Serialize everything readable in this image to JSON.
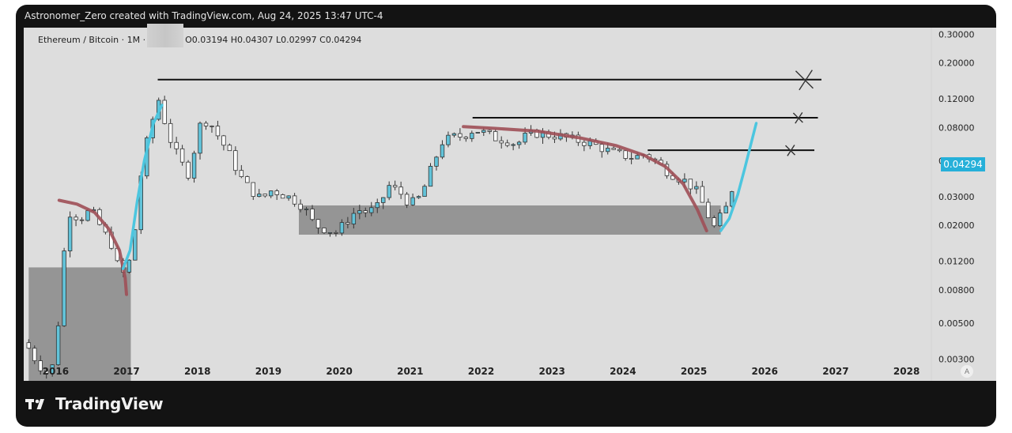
{
  "header": {
    "attribution": "Astronomer_Zero created with TradingView.com, Aug 24, 2025 13:47 UTC-4"
  },
  "legend": {
    "symbol": "Ethereum / Bitcoin · 1M ·",
    "ohlc": "O0.03194  H0.04307  L0.02997  C0.04294"
  },
  "brand": {
    "name": "TradingView"
  },
  "auto_button": "A",
  "colors": {
    "bullish_candle": "#62c3d9",
    "bearish_candle": "#ffffff",
    "candle_outline": "#333333",
    "arc_red": "#9e4f57",
    "arc_blue": "#4cc6df",
    "zone": "#888888",
    "price_label": "#26b0d9"
  },
  "chart_data": {
    "type": "candlestick",
    "symbol": "ETHBTC",
    "interval": "1M",
    "scale": "log",
    "ylim": [
      0.0022,
      0.33
    ],
    "xlim": [
      2015.55,
      2028.35
    ],
    "y_ticks": [
      "0.30000",
      "0.20000",
      "0.12000",
      "0.08000",
      "0.05000",
      "0.03000",
      "0.02000",
      "0.01200",
      "0.00800",
      "0.00500",
      "0.00300"
    ],
    "x_ticks": [
      "2016",
      "2017",
      "2018",
      "2019",
      "2020",
      "2021",
      "2022",
      "2023",
      "2024",
      "2025",
      "2026",
      "2027",
      "2028"
    ],
    "last_price": "0.04294",
    "close_path": [
      [
        2015.62,
        0.0035
      ],
      [
        2015.75,
        0.0028
      ],
      [
        2015.9,
        0.0024
      ],
      [
        2016.0,
        0.003
      ],
      [
        2016.1,
        0.012
      ],
      [
        2016.2,
        0.024
      ],
      [
        2016.35,
        0.022
      ],
      [
        2016.5,
        0.025
      ],
      [
        2016.65,
        0.019
      ],
      [
        2016.8,
        0.015
      ],
      [
        2016.92,
        0.0095
      ],
      [
        2017.08,
        0.013
      ],
      [
        2017.2,
        0.04
      ],
      [
        2017.3,
        0.07
      ],
      [
        2017.45,
        0.12
      ],
      [
        2017.6,
        0.07
      ],
      [
        2017.75,
        0.05
      ],
      [
        2017.9,
        0.04
      ],
      [
        2018.0,
        0.08
      ],
      [
        2018.15,
        0.09
      ],
      [
        2018.3,
        0.07
      ],
      [
        2018.45,
        0.055
      ],
      [
        2018.6,
        0.04
      ],
      [
        2018.75,
        0.033
      ],
      [
        2018.9,
        0.029
      ],
      [
        2019.05,
        0.033
      ],
      [
        2019.2,
        0.031
      ],
      [
        2019.35,
        0.029
      ],
      [
        2019.5,
        0.026
      ],
      [
        2019.65,
        0.02
      ],
      [
        2019.8,
        0.019
      ],
      [
        2019.95,
        0.018
      ],
      [
        2020.1,
        0.021
      ],
      [
        2020.25,
        0.025
      ],
      [
        2020.4,
        0.024
      ],
      [
        2020.55,
        0.026
      ],
      [
        2020.7,
        0.035
      ],
      [
        2020.85,
        0.032
      ],
      [
        2021.0,
        0.027
      ],
      [
        2021.15,
        0.03
      ],
      [
        2021.3,
        0.045
      ],
      [
        2021.45,
        0.065
      ],
      [
        2021.6,
        0.07
      ],
      [
        2021.75,
        0.071
      ],
      [
        2021.9,
        0.078
      ],
      [
        2022.05,
        0.074
      ],
      [
        2022.2,
        0.069
      ],
      [
        2022.35,
        0.067
      ],
      [
        2022.5,
        0.063
      ],
      [
        2022.65,
        0.072
      ],
      [
        2022.8,
        0.074
      ],
      [
        2022.95,
        0.072
      ],
      [
        2023.1,
        0.071
      ],
      [
        2023.25,
        0.068
      ],
      [
        2023.4,
        0.066
      ],
      [
        2023.55,
        0.064
      ],
      [
        2023.7,
        0.06
      ],
      [
        2023.85,
        0.056
      ],
      [
        2024.0,
        0.054
      ],
      [
        2024.15,
        0.052
      ],
      [
        2024.3,
        0.055
      ],
      [
        2024.45,
        0.05
      ],
      [
        2024.6,
        0.044
      ],
      [
        2024.75,
        0.04
      ],
      [
        2024.9,
        0.037
      ],
      [
        2025.05,
        0.032
      ],
      [
        2025.2,
        0.023
      ],
      [
        2025.3,
        0.019
      ],
      [
        2025.4,
        0.024
      ],
      [
        2025.5,
        0.027
      ],
      [
        2025.58,
        0.043
      ]
    ],
    "zones": [
      {
        "x": [
          2015.62,
          2017.06
        ],
        "y": [
          0.0021,
          0.011
        ]
      },
      {
        "x": [
          2019.43,
          2025.38
        ],
        "y": [
          0.0175,
          0.0265
        ]
      }
    ],
    "resistance_lines": [
      {
        "x": [
          2017.44,
          2026.8
        ],
        "y": 0.158
      },
      {
        "x": [
          2021.88,
          2026.75
        ],
        "y": 0.092
      },
      {
        "x": [
          2024.35,
          2026.7
        ],
        "y": 0.058
      }
    ],
    "cross_marks": [
      {
        "x": 2026.56,
        "y": 0.158,
        "size": "large"
      },
      {
        "x": 2026.47,
        "y": 0.092,
        "size": "small"
      },
      {
        "x": 2026.36,
        "y": 0.058,
        "size": "small"
      }
    ],
    "red_arcs": [
      [
        [
          2016.05,
          0.0285
        ],
        [
          2016.3,
          0.027
        ],
        [
          2016.55,
          0.024
        ],
        [
          2016.75,
          0.019
        ],
        [
          2016.9,
          0.014
        ],
        [
          2016.98,
          0.0095
        ],
        [
          2017.0,
          0.0075
        ]
      ],
      [
        [
          2021.75,
          0.081
        ],
        [
          2022.2,
          0.079
        ],
        [
          2022.8,
          0.076
        ],
        [
          2023.4,
          0.069
        ],
        [
          2023.9,
          0.062
        ],
        [
          2024.3,
          0.054
        ],
        [
          2024.6,
          0.046
        ],
        [
          2024.85,
          0.036
        ],
        [
          2025.05,
          0.025
        ],
        [
          2025.18,
          0.0185
        ]
      ]
    ],
    "blue_arcs": [
      [
        [
          2016.95,
          0.0108
        ],
        [
          2017.05,
          0.014
        ],
        [
          2017.15,
          0.028
        ],
        [
          2017.25,
          0.05
        ],
        [
          2017.38,
          0.085
        ],
        [
          2017.5,
          0.11
        ]
      ],
      [
        [
          2025.38,
          0.0185
        ],
        [
          2025.5,
          0.022
        ],
        [
          2025.62,
          0.031
        ],
        [
          2025.72,
          0.045
        ],
        [
          2025.8,
          0.062
        ],
        [
          2025.88,
          0.085
        ]
      ]
    ]
  }
}
